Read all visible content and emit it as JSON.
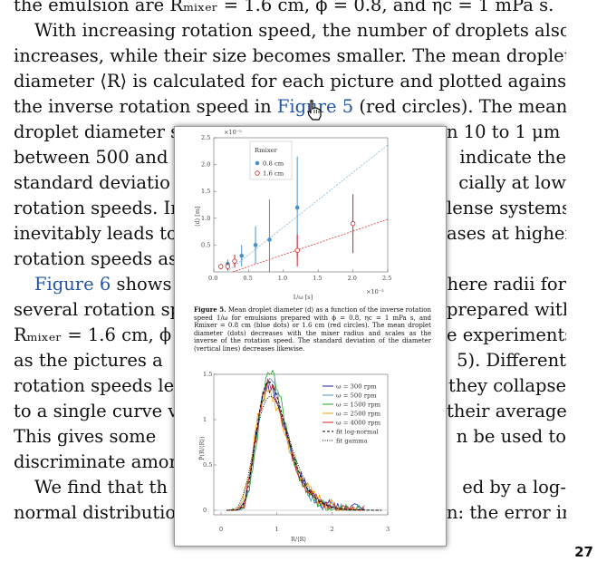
{
  "page": {
    "lines": [
      "the emulsion are Rₘᵢₓₑᵣ = 1.6 cm, ϕ = 0.8, and ηc = 1 mPa s.",
      "With increasing rotation speed, the number of droplets also",
      "increases, while their size becomes smaller. The mean droplet",
      "diameter ⟨R⟩ is calculated for each picture and plotted against",
      "the inverse rotation speed in",
      "droplet diameter s",
      "between 500 and",
      "standard deviatio",
      "rotation speeds. In",
      "inevitably leads to",
      "rotation speeds as",
      "shows",
      "several rotation sp",
      "Rₘᵢₓₑᵣ = 1.6 cm, ϕ",
      "as the pictures a",
      "rotation speeds lea",
      "to a single curve v",
      "This gives some",
      "discriminate amon",
      "We find that th",
      "normal distributio"
    ],
    "right_fragments": [
      "(red circles). The mean",
      "n 10 to 1 μm",
      "indicate the",
      "cially at low",
      "lense systems",
      "ases at higher",
      "here radii for",
      "prepared with",
      "e experiments",
      "5). Different",
      "they collapse",
      "their average.",
      "n be used to",
      "ed by a log-",
      "n: the error in"
    ],
    "fig5_link": "Figure 5",
    "fig6_link": "Figure 6",
    "page_number": "27"
  },
  "popup": {
    "caption_label": "Figure 5.",
    "caption_text": "Mean droplet diameter ⟨d⟩ as a function of the inverse rotation speed 1/ω for emulsions prepared with ϕ = 0.8, ηc = 1 mPa s, and Rmixer = 0.8 cm (blue dots) or 1.6 cm (red circles). The mean droplet diameter (dots) decreases with the mixer radius and scales as the inverse of the rotation speed. The standard deviation of the diameter (vertical lines) decreases likewise.",
    "colors": {
      "blue": "#4a90c9",
      "red": "#d62020",
      "green": "#22a022",
      "orange": "#f0a000",
      "navy": "#1a1aa0",
      "black": "#000000"
    }
  },
  "chart_data": [
    {
      "type": "scatter",
      "title": "",
      "xlabel": "1/ω [s]",
      "ylabel": "⟨d⟩ [m]",
      "x_multiplier": "×10⁻³",
      "y_multiplier": "×10⁻⁵",
      "xlim": [
        0,
        2.5
      ],
      "ylim": [
        0,
        2.5
      ],
      "xticks": [
        "0.0",
        "0.5",
        "1.0",
        "1.5",
        "2.0",
        "2.5"
      ],
      "yticks": [
        "0.5",
        "1.0",
        "1.5",
        "2.0",
        "2.5"
      ],
      "legend_title": "Rmixer",
      "series": [
        {
          "name": "0.8 cm",
          "x": [
            0.2,
            0.3,
            0.4,
            0.6,
            0.8,
            1.2
          ],
          "y": [
            0.15,
            0.2,
            0.3,
            0.5,
            0.6,
            1.2
          ],
          "err": [
            0.08,
            0.12,
            0.2,
            0.35,
            0.75,
            0.95
          ]
        },
        {
          "name": "1.6 cm",
          "x": [
            0.1,
            0.2,
            0.3,
            1.2,
            2.0
          ],
          "y": [
            0.1,
            0.1,
            0.2,
            0.4,
            0.9
          ],
          "err": [
            0.05,
            0.08,
            0.12,
            0.3,
            0.55
          ]
        }
      ]
    },
    {
      "type": "line",
      "xlabel": "R/⟨R⟩",
      "ylabel": "P̃(R/⟨R⟩)",
      "xlim": [
        0,
        3
      ],
      "ylim": [
        0,
        1.5
      ],
      "xticks": [
        "0",
        "1",
        "2",
        "3"
      ],
      "yticks": [
        "0",
        "0.5",
        "1",
        "1.5"
      ],
      "series": [
        {
          "name": "ω = 300 rpm"
        },
        {
          "name": "ω = 500 rpm"
        },
        {
          "name": "ω = 1500 rpm"
        },
        {
          "name": "ω = 2500 rpm"
        },
        {
          "name": "ω = 4000 rpm"
        },
        {
          "name": "fit log-normal"
        },
        {
          "name": "fit gamma"
        }
      ]
    }
  ]
}
